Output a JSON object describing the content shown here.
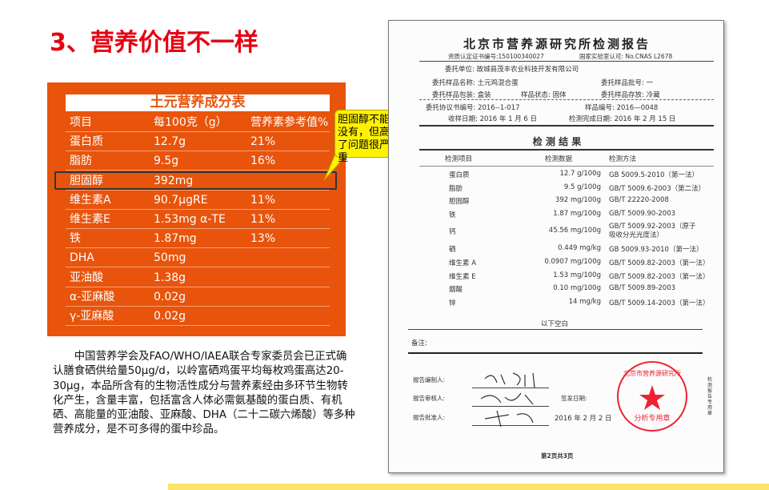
{
  "title": "3、营养价值不一样",
  "panel": {
    "title": "土元营养成分表",
    "rows": [
      [
        "项目",
        "每100克（g）",
        "营养素参考值%"
      ],
      [
        "蛋白质",
        "12.7g",
        "21%"
      ],
      [
        "脂肪",
        "9.5g",
        "16%"
      ],
      [
        "胆固醇",
        "392mg",
        ""
      ],
      [
        "维生素A",
        "90.7μgRE",
        "11%"
      ],
      [
        "维生素E",
        "1.53mg α-TE",
        "11%"
      ],
      [
        "铁",
        "1.87mg",
        "13%"
      ],
      [
        "DHA",
        "50mg",
        ""
      ],
      [
        "亚油酸",
        "1.38g",
        ""
      ],
      [
        "α-亚麻酸",
        "0.02g",
        ""
      ],
      [
        "γ-亚麻酸",
        "0.02g",
        ""
      ]
    ]
  },
  "callout": "胆固醇不能没有，但高了问题很严重",
  "paragraph": "中国营养学会及FAO/WHO/IAEA联合专家委员会已正式确认膳食硒供给量50μg/d，以岭富硒鸡蛋平均每枚鸡蛋高达20-30μg，本品所含有的生物活性成分与营养素经由多环节生物转化产生，含量丰富，包括富含人体必需氨基酸的蛋白质、有机硒、高能量的亚油酸、亚麻酸、DHA（二十二碳六烯酸）等多种营养成分，是不可多得的蛋中珍品。",
  "report": {
    "title": "北京市营养源研究所检测报告",
    "cert": "资质认定证书编号:150100340027",
    "cnas": "国家实验室认可: No.CNAS L2678",
    "client": "委托单位: 故城县茂丰农业科技开发有限公司",
    "sample_name": "委托样品名称: 土元鸡混合蛋",
    "batch": "委托样品批号: 一",
    "package": "委托样品包装: 盒装",
    "state": "样品状态: 固体",
    "storage": "委托样品存放: 冷藏",
    "agreement": "委托协议书编号: 2016--1-017",
    "sample_no": "样品编号: 2016—0048",
    "received": "收样日期: 2016 年 1 月 6 日",
    "completed": "检测完成日期: 2016 年 2 月 15 日",
    "results_title": "检 测 结 果",
    "headers": [
      "检测项目",
      "检测数据",
      "检测方法"
    ],
    "rows": [
      [
        "蛋白质",
        "12.7 g/100g",
        "GB 5009.5-2010（第一法）"
      ],
      [
        "脂肪",
        "9.5 g/100g",
        "GB/T 5009.6-2003（第二法）"
      ],
      [
        "胆固醇",
        "392 mg/100g",
        "GB/T 22220-2008"
      ],
      [
        "铁",
        "1.87 mg/100g",
        "GB/T 5009.90-2003"
      ],
      [
        "钙",
        "45.56 mg/100g",
        "GB/T 5009.92-2003（原子吸收分光光度法）"
      ],
      [
        "硒",
        "0.449 mg/kg",
        "GB 5009.93-2010（第一法）"
      ],
      [
        "维生素 A",
        "0.0907 mg/100g",
        "GB/T 5009.82-2003（第一法）"
      ],
      [
        "维生素 E",
        "1.53 mg/100g",
        "GB/T 5009.82-2003（第一法）"
      ],
      [
        "烟酸",
        "0.10 mg/100g",
        "GB/T 5009.89-2003"
      ],
      [
        "锌",
        "14 mg/kg",
        "GB/T 5009.14-2003（第一法）"
      ]
    ],
    "blank": "以下空白",
    "remarks": "备注:",
    "compiler": "报告编制人:",
    "reviewer": "报告审核人:",
    "approver": "报告批准人:",
    "issue_label": "签发日期:",
    "issue_date": "2016 年 2 月 2 日",
    "stamp_text": "北京市营养源研究所 分析专用章",
    "side": "检测报告专用章",
    "page": "第2页共3页"
  }
}
